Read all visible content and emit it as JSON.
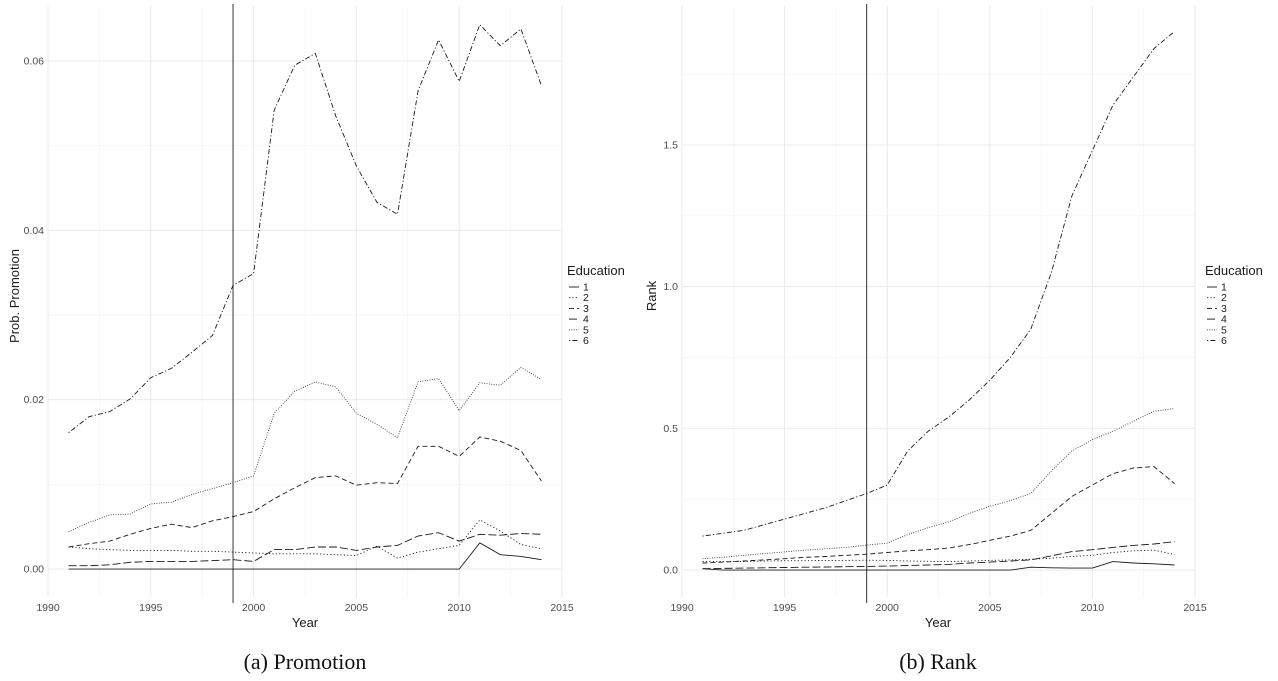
{
  "chart_data": [
    {
      "type": "line",
      "caption": "(a) Promotion",
      "xlabel": "Year",
      "ylabel": "Prob. Promotion",
      "xlim": [
        1990,
        2015
      ],
      "ylim": [
        -0.0033,
        0.0665
      ],
      "x_ticks": [
        "1990",
        "1995",
        "2000",
        "2005",
        "2010",
        "2015"
      ],
      "y_ticks": [
        "0.00",
        "0.02",
        "0.04",
        "0.06"
      ],
      "y_tick_values": [
        0,
        0.02,
        0.04,
        0.06
      ],
      "vline_x": 1999,
      "grid": true,
      "legend_title": "Education",
      "legend_position": "right",
      "x": [
        1991,
        1992,
        1993,
        1994,
        1995,
        1996,
        1997,
        1998,
        1999,
        2000,
        2001,
        2002,
        2003,
        2004,
        2005,
        2006,
        2007,
        2008,
        2009,
        2010,
        2011,
        2012,
        2013,
        2014
      ],
      "series": [
        {
          "name": "1",
          "dash": "solid",
          "values": [
            0,
            0,
            0,
            0,
            0,
            0,
            0,
            0,
            0,
            0,
            0,
            0,
            0,
            0,
            0,
            0,
            0,
            0,
            0,
            0,
            0.0031,
            0.0017,
            0.0015,
            0.0011
          ]
        },
        {
          "name": "2",
          "dash": "dotted",
          "values": [
            0.0026,
            0.0024,
            0.0023,
            0.0022,
            0.0022,
            0.0022,
            0.0021,
            0.0021,
            0.002,
            0.0019,
            0.0018,
            0.0018,
            0.0018,
            0.0017,
            0.0016,
            0.0027,
            0.0013,
            0.002,
            0.0024,
            0.0028,
            0.0058,
            0.0045,
            0.0029,
            0.0024
          ]
        },
        {
          "name": "3",
          "dash": "dashed",
          "values": [
            0.0026,
            0.003,
            0.0033,
            0.0041,
            0.0048,
            0.0053,
            0.0049,
            0.0057,
            0.0062,
            0.0068,
            0.0083,
            0.0096,
            0.0108,
            0.011,
            0.0099,
            0.0102,
            0.0101,
            0.0145,
            0.0145,
            0.0133,
            0.0156,
            0.0151,
            0.014,
            0.0104
          ]
        },
        {
          "name": "4",
          "dash": "longdash",
          "values": [
            0.0004,
            0.0004,
            0.0005,
            0.0008,
            0.0009,
            0.0009,
            0.0009,
            0.001,
            0.0011,
            0.0009,
            0.0023,
            0.0023,
            0.0026,
            0.0026,
            0.0022,
            0.0026,
            0.0028,
            0.0039,
            0.0043,
            0.0033,
            0.0041,
            0.004,
            0.0042,
            0.0041
          ]
        },
        {
          "name": "5",
          "dash": "finedot",
          "values": [
            0.0044,
            0.0055,
            0.0064,
            0.0065,
            0.0077,
            0.0079,
            0.0088,
            0.0095,
            0.0102,
            0.011,
            0.0184,
            0.021,
            0.0221,
            0.0215,
            0.0184,
            0.0171,
            0.0155,
            0.0221,
            0.0225,
            0.0187,
            0.022,
            0.0217,
            0.0238,
            0.0224
          ]
        },
        {
          "name": "6",
          "dash": "dotdash",
          "values": [
            0.0161,
            0.018,
            0.0186,
            0.0201,
            0.0226,
            0.0237,
            0.0256,
            0.0276,
            0.0335,
            0.0349,
            0.0542,
            0.0595,
            0.0609,
            0.0535,
            0.0476,
            0.0433,
            0.0419,
            0.0565,
            0.0625,
            0.0576,
            0.0643,
            0.0618,
            0.0638,
            0.0571
          ]
        }
      ]
    },
    {
      "type": "line",
      "caption": "(b) Rank",
      "xlabel": "Year",
      "ylabel": "Rank",
      "xlim": [
        1990,
        2015
      ],
      "ylim": [
        -0.095,
        1.99
      ],
      "x_ticks": [
        "1990",
        "1995",
        "2000",
        "2005",
        "2010",
        "2015"
      ],
      "y_ticks": [
        "0.0",
        "0.5",
        "1.0",
        "1.5"
      ],
      "y_tick_values": [
        0,
        0.5,
        1.0,
        1.5
      ],
      "vline_x": 1999,
      "grid": true,
      "legend_title": "Education",
      "legend_position": "right",
      "x": [
        1991,
        1992,
        1993,
        1994,
        1995,
        1996,
        1997,
        1998,
        1999,
        2000,
        2001,
        2002,
        2003,
        2004,
        2005,
        2006,
        2007,
        2008,
        2009,
        2010,
        2011,
        2012,
        2013,
        2014
      ],
      "series": [
        {
          "name": "1",
          "dash": "solid",
          "values": [
            0.005,
            0,
            0,
            0,
            0,
            0,
            0,
            0,
            0,
            0,
            0,
            0,
            0,
            0,
            0,
            0,
            0.01,
            0.008,
            0.007,
            0.007,
            0.03,
            0.025,
            0.022,
            0.018
          ]
        },
        {
          "name": "2",
          "dash": "dotted",
          "values": [
            0.03,
            0.03,
            0.03,
            0.032,
            0.033,
            0.033,
            0.034,
            0.034,
            0.035,
            0.034,
            0.032,
            0.031,
            0.03,
            0.032,
            0.034,
            0.036,
            0.038,
            0.042,
            0.048,
            0.052,
            0.062,
            0.068,
            0.07,
            0.055
          ]
        },
        {
          "name": "3",
          "dash": "dashed",
          "values": [
            0.025,
            0.028,
            0.032,
            0.036,
            0.04,
            0.045,
            0.048,
            0.052,
            0.056,
            0.062,
            0.068,
            0.072,
            0.078,
            0.09,
            0.105,
            0.12,
            0.14,
            0.2,
            0.26,
            0.3,
            0.34,
            0.36,
            0.365,
            0.305
          ]
        },
        {
          "name": "4",
          "dash": "longdash",
          "values": [
            0.005,
            0.006,
            0.007,
            0.008,
            0.009,
            0.01,
            0.011,
            0.012,
            0.013,
            0.014,
            0.016,
            0.018,
            0.02,
            0.025,
            0.028,
            0.032,
            0.036,
            0.05,
            0.065,
            0.072,
            0.08,
            0.087,
            0.092,
            0.1
          ]
        },
        {
          "name": "5",
          "dash": "finedot",
          "values": [
            0.04,
            0.045,
            0.052,
            0.058,
            0.064,
            0.07,
            0.075,
            0.08,
            0.088,
            0.095,
            0.125,
            0.15,
            0.17,
            0.2,
            0.225,
            0.245,
            0.27,
            0.35,
            0.42,
            0.46,
            0.49,
            0.525,
            0.56,
            0.57
          ]
        },
        {
          "name": "6",
          "dash": "dotdash",
          "values": [
            0.12,
            0.13,
            0.14,
            0.16,
            0.18,
            0.2,
            0.22,
            0.245,
            0.27,
            0.3,
            0.42,
            0.49,
            0.54,
            0.6,
            0.67,
            0.75,
            0.85,
            1.05,
            1.32,
            1.48,
            1.64,
            1.74,
            1.84,
            1.9
          ]
        }
      ]
    }
  ]
}
